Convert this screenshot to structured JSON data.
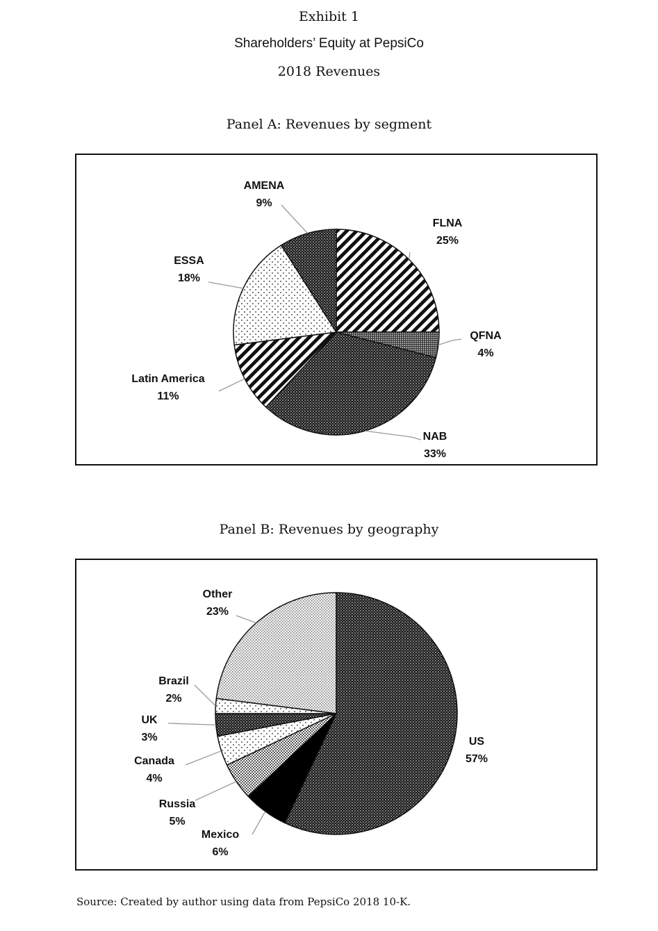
{
  "header": {
    "exhibit": "Exhibit 1",
    "title": "Shareholders’ Equity at PepsiCo",
    "subtitle": "2018 Revenues"
  },
  "source": "Source: Created by author using data from PepsiCo 2018 10-K.",
  "chart_data": [
    {
      "type": "pie",
      "title": "Panel A: Revenues by segment",
      "start_angle_deg": 0,
      "direction": "clockwise",
      "slices": [
        {
          "label": "FLNA",
          "value": 25,
          "value_label": "25%",
          "pattern": "diag-stripes",
          "label_side": "right"
        },
        {
          "label": "QFNA",
          "value": 4,
          "value_label": "4%",
          "pattern": "dense-dots",
          "label_side": "right"
        },
        {
          "label": "NAB",
          "value": 33,
          "value_label": "33%",
          "pattern": "dark-dots",
          "label_side": "right"
        },
        {
          "label": "Latin America",
          "value": 11,
          "value_label": "11%",
          "pattern": "diag-stripes",
          "label_side": "left"
        },
        {
          "label": "ESSA",
          "value": 18,
          "value_label": "18%",
          "pattern": "sparse-dots",
          "label_side": "left"
        },
        {
          "label": "AMENA",
          "value": 9,
          "value_label": "9%",
          "pattern": "dark-dots",
          "label_side": "left"
        }
      ]
    },
    {
      "type": "pie",
      "title": "Panel B: Revenues by geography",
      "start_angle_deg": 0,
      "direction": "clockwise",
      "slices": [
        {
          "label": "US",
          "value": 57,
          "value_label": "57%",
          "pattern": "dark-dots",
          "label_side": "right"
        },
        {
          "label": "Mexico",
          "value": 6,
          "value_label": "6%",
          "pattern": "solid-black",
          "label_side": "left"
        },
        {
          "label": "Russia",
          "value": 5,
          "value_label": "5%",
          "pattern": "checker",
          "label_side": "left"
        },
        {
          "label": "Canada",
          "value": 4,
          "value_label": "4%",
          "pattern": "sparse-dots",
          "label_side": "left"
        },
        {
          "label": "UK",
          "value": 3,
          "value_label": "3%",
          "pattern": "dark-dots",
          "label_side": "left"
        },
        {
          "label": "Brazil",
          "value": 2,
          "value_label": "2%",
          "pattern": "sparse-dots",
          "label_side": "left"
        },
        {
          "label": "Other",
          "value": 23,
          "value_label": "23%",
          "pattern": "light-checker",
          "label_side": "left"
        }
      ]
    }
  ]
}
